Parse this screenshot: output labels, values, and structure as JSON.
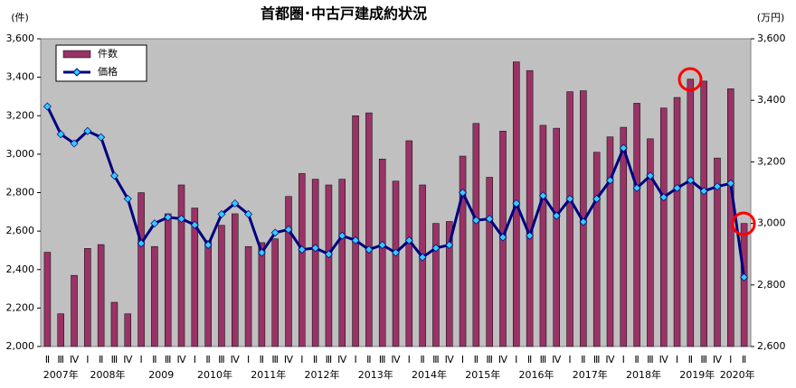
{
  "chart_data": {
    "type": "bar_line",
    "title": "首都圏･中古戸建成約状況",
    "y_label": "(件)",
    "y2_label": "(万円)",
    "categories": [
      "Ⅱ",
      "Ⅲ",
      "Ⅳ",
      "Ⅰ",
      "Ⅱ",
      "Ⅲ",
      "Ⅳ",
      "Ⅰ",
      "Ⅱ",
      "Ⅲ",
      "Ⅳ",
      "Ⅰ",
      "Ⅱ",
      "Ⅲ",
      "Ⅳ",
      "Ⅰ",
      "Ⅱ",
      "Ⅲ",
      "Ⅳ",
      "Ⅰ",
      "Ⅱ",
      "Ⅲ",
      "Ⅳ",
      "Ⅰ",
      "Ⅱ",
      "Ⅲ",
      "Ⅳ",
      "Ⅰ",
      "Ⅱ",
      "Ⅲ",
      "Ⅳ",
      "Ⅰ",
      "Ⅱ",
      "Ⅲ",
      "Ⅳ",
      "Ⅰ",
      "Ⅱ",
      "Ⅲ",
      "Ⅳ",
      "Ⅰ",
      "Ⅱ",
      "Ⅲ",
      "Ⅳ",
      "Ⅰ",
      "Ⅱ",
      "Ⅲ",
      "Ⅳ",
      "Ⅰ",
      "Ⅱ",
      "Ⅲ",
      "Ⅳ",
      "Ⅰ",
      "Ⅱ"
    ],
    "year_labels": [
      "2007年",
      "2008年",
      "2009",
      "2010年",
      "2011年",
      "2012年",
      "2013年",
      "2014年",
      "2015年",
      "2016年",
      "2017年",
      "2018年",
      "2019年",
      "2020年"
    ],
    "series": [
      {
        "name": "件数",
        "kind": "bar",
        "color": "#993366",
        "values": [
          2490,
          2170,
          2370,
          2510,
          2530,
          2230,
          2170,
          2800,
          2520,
          2690,
          2840,
          2720,
          2550,
          2630,
          2690,
          2520,
          2540,
          2560,
          2780,
          2900,
          2870,
          2840,
          2870,
          3200,
          3215,
          2975,
          2860,
          3070,
          2840,
          2640,
          2650,
          2990,
          3160,
          2880,
          3120,
          3480,
          3435,
          3150,
          3135,
          3325,
          3330,
          3010,
          3090,
          3140,
          3265,
          3080,
          3240,
          3295,
          3390,
          3380,
          2980,
          3340,
          2640
        ]
      },
      {
        "name": "価格",
        "kind": "line",
        "axis": "y2",
        "color": "#000080",
        "marker_color": "#33ccff",
        "values": [
          3380,
          3290,
          3260,
          3300,
          3280,
          3155,
          3080,
          2935,
          3000,
          3020,
          3015,
          2995,
          2930,
          3030,
          3065,
          3030,
          2905,
          2970,
          2980,
          2915,
          2920,
          2900,
          2960,
          2945,
          2915,
          2930,
          2905,
          2945,
          2890,
          2920,
          2930,
          3100,
          3010,
          3015,
          2955,
          3065,
          2960,
          3090,
          3025,
          3080,
          3005,
          3080,
          3140,
          3245,
          3115,
          3155,
          3085,
          3115,
          3140,
          3105,
          3120,
          3130,
          2825
        ]
      }
    ],
    "ylim": [
      2000,
      3600
    ],
    "yticks": [
      {
        "value": 2000,
        "label": "2,000"
      },
      {
        "value": 2200,
        "label": "2,200"
      },
      {
        "value": 2400,
        "label": "2,400"
      },
      {
        "value": 2600,
        "label": "2,600"
      },
      {
        "value": 2800,
        "label": "2,800"
      },
      {
        "value": 3000,
        "label": "3,000"
      },
      {
        "value": 3200,
        "label": "3,200"
      },
      {
        "value": 3400,
        "label": "3,400"
      },
      {
        "value": 3600,
        "label": "3,600"
      }
    ],
    "y2lim": [
      2600,
      3600
    ],
    "y2ticks": [
      {
        "value": 2600,
        "label": "2,600"
      },
      {
        "value": 2800,
        "label": "2,800"
      },
      {
        "value": 3000,
        "label": "3,000"
      },
      {
        "value": 3200,
        "label": "3,200"
      },
      {
        "value": 3400,
        "label": "3,400"
      },
      {
        "value": 3600,
        "label": "3,600"
      }
    ],
    "grid": false,
    "background": "#c0c0c0"
  }
}
